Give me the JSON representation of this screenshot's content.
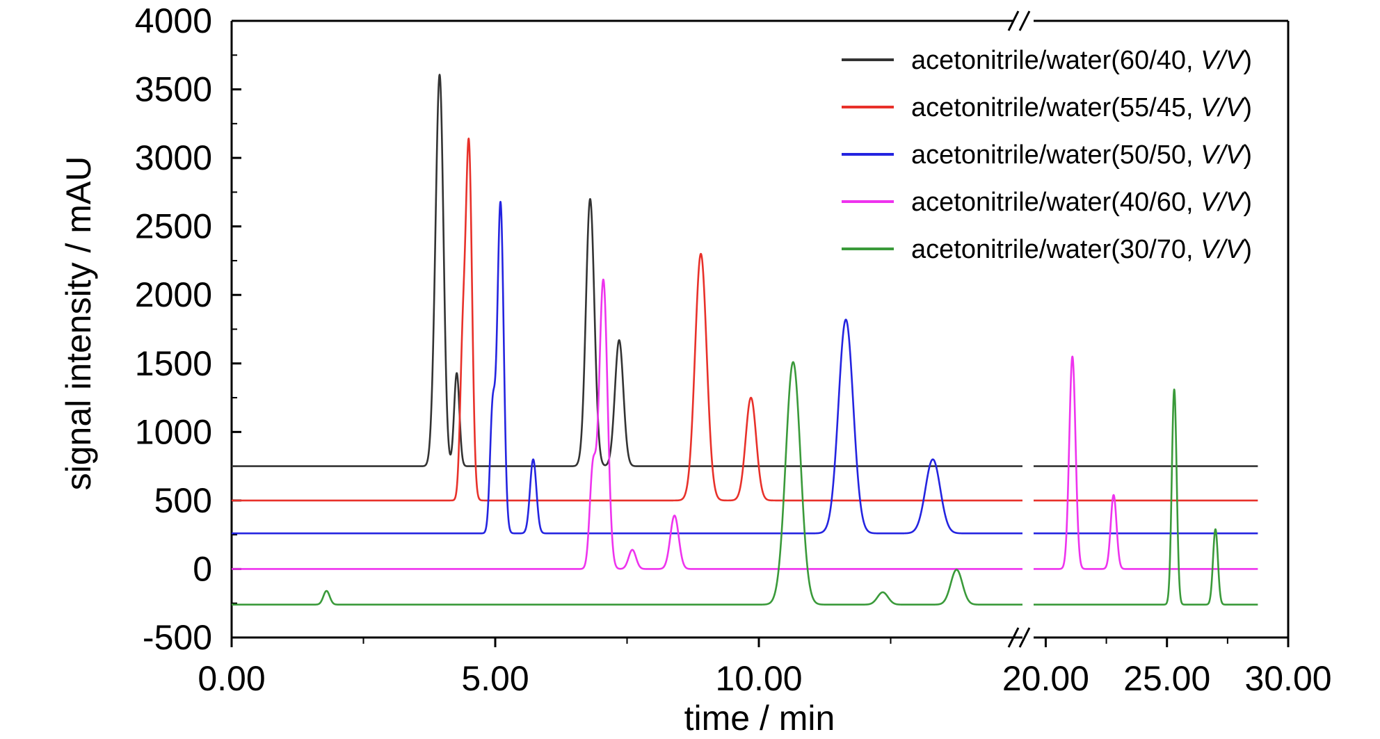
{
  "chart_data": {
    "type": "line",
    "xlabel": "time / min",
    "ylabel": "signal intensity / mAU",
    "ylim": [
      -500,
      4000
    ],
    "yticks": [
      "-500",
      "0",
      "500",
      "1000",
      "1500",
      "2000",
      "2500",
      "3000",
      "3500",
      "4000"
    ],
    "xlim_segments": [
      [
        0,
        15
      ],
      [
        19.5,
        30
      ]
    ],
    "xticks": [
      {
        "value": 0,
        "label": "0.00"
      },
      {
        "value": 5,
        "label": "5.00"
      },
      {
        "value": 10,
        "label": "10.00"
      },
      {
        "value": 20,
        "label": "20.00"
      },
      {
        "value": 25,
        "label": "25.00"
      },
      {
        "value": 30,
        "label": "30.00"
      }
    ],
    "axis_break": "//",
    "legend_position": "top-right",
    "series": [
      {
        "name": "acetonitrile/water(60/40, ",
        "name_unit": "V/V",
        "name_close": ")",
        "color": "#333333",
        "baseline": 750,
        "peaks": [
          [
            3.95,
            2750,
            0.07
          ],
          [
            3.85,
            400,
            0.06
          ],
          [
            4.27,
            680,
            0.05
          ],
          [
            6.8,
            1950,
            0.08
          ],
          [
            7.35,
            920,
            0.08
          ]
        ]
      },
      {
        "name": "acetonitrile/water(55/45, ",
        "name_unit": "V/V",
        "name_close": ")",
        "color": "#e8312a",
        "baseline": 500,
        "peaks": [
          [
            4.38,
            990,
            0.05
          ],
          [
            4.5,
            2580,
            0.06
          ],
          [
            8.9,
            1800,
            0.11
          ],
          [
            9.85,
            750,
            0.1
          ]
        ]
      },
      {
        "name": "acetonitrile/water(50/50, ",
        "name_unit": "V/V",
        "name_close": ")",
        "color": "#2424e0",
        "baseline": 260,
        "peaks": [
          [
            4.95,
            890,
            0.05
          ],
          [
            5.1,
            2410,
            0.06
          ],
          [
            5.72,
            540,
            0.06
          ],
          [
            11.65,
            1560,
            0.14
          ],
          [
            13.3,
            540,
            0.14
          ]
        ]
      },
      {
        "name": "acetonitrile/water(40/60, ",
        "name_unit": "V/V",
        "name_close": ")",
        "color": "#ee33ee",
        "baseline": 0,
        "peaks": [
          [
            6.85,
            700,
            0.06
          ],
          [
            7.05,
            2110,
            0.08
          ],
          [
            7.6,
            140,
            0.07
          ],
          [
            8.4,
            390,
            0.08
          ],
          [
            21.1,
            1550,
            0.13
          ],
          [
            22.8,
            540,
            0.12
          ]
        ]
      },
      {
        "name": "acetonitrile/water(30/70, ",
        "name_unit": "V/V",
        "name_close": ")",
        "color": "#3a9a3a",
        "baseline": -260,
        "peaks": [
          [
            1.8,
            100,
            0.06
          ],
          [
            10.65,
            1770,
            0.14
          ],
          [
            12.35,
            90,
            0.1
          ],
          [
            13.75,
            255,
            0.11
          ],
          [
            25.3,
            1570,
            0.1
          ],
          [
            27.0,
            550,
            0.1
          ]
        ]
      }
    ]
  }
}
